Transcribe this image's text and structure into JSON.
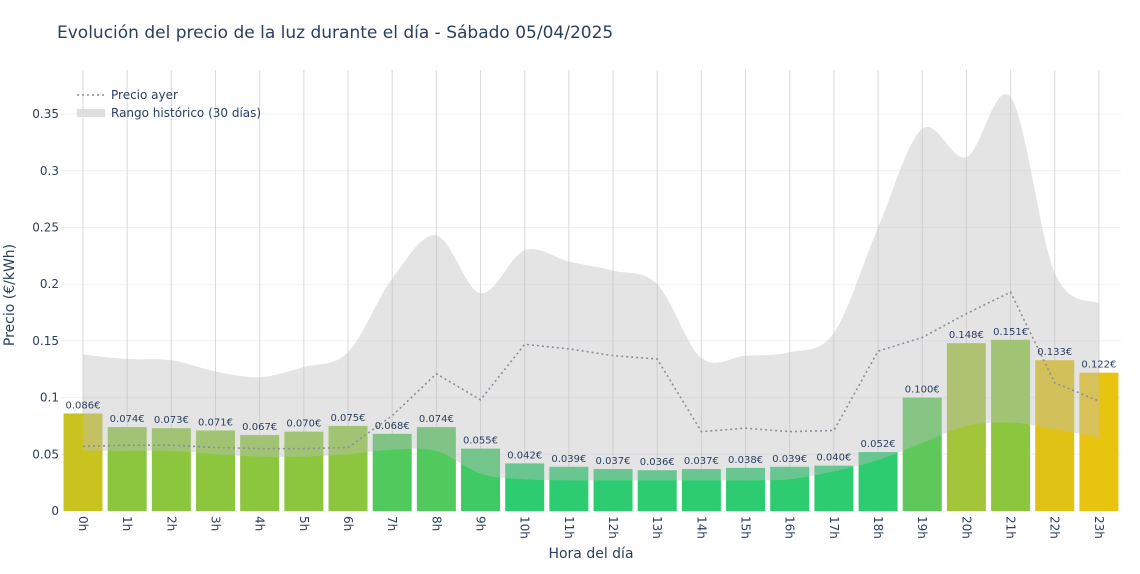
{
  "chart_data": {
    "type": "bar",
    "title": "Evolución del precio de la luz durante el día - Sábado 05/04/2025",
    "xlabel": "Hora del día",
    "ylabel": "Precio (€/kWh)",
    "ylim": [
      0,
      0.38
    ],
    "yticks": [
      0,
      0.05,
      0.1,
      0.15,
      0.2,
      0.25,
      0.3,
      0.35
    ],
    "ytick_labels": [
      "0",
      "0.05",
      "0.1",
      "0.15",
      "0.2",
      "0.25",
      "0.3",
      "0.35"
    ],
    "grid": true,
    "legend_position": "top-left",
    "categories": [
      "0h",
      "1h",
      "2h",
      "3h",
      "4h",
      "5h",
      "6h",
      "7h",
      "8h",
      "9h",
      "10h",
      "11h",
      "12h",
      "13h",
      "14h",
      "15h",
      "16h",
      "17h",
      "18h",
      "19h",
      "20h",
      "21h",
      "22h",
      "23h"
    ],
    "values": [
      0.086,
      0.074,
      0.073,
      0.071,
      0.067,
      0.07,
      0.075,
      0.068,
      0.074,
      0.055,
      0.042,
      0.039,
      0.037,
      0.036,
      0.037,
      0.038,
      0.039,
      0.04,
      0.052,
      0.1,
      0.148,
      0.151,
      0.133,
      0.122
    ],
    "data_labels": [
      "0.086€",
      "0.074€",
      "0.073€",
      "0.071€",
      "0.067€",
      "0.070€",
      "0.075€",
      "0.068€",
      "0.074€",
      "0.055€",
      "0.042€",
      "0.039€",
      "0.037€",
      "0.036€",
      "0.037€",
      "0.038€",
      "0.039€",
      "0.040€",
      "0.052€",
      "0.100€",
      "0.148€",
      "0.151€",
      "0.133€",
      "0.122€"
    ],
    "bar_colors": [
      "#c9c31f",
      "#8cc63f",
      "#8cc63f",
      "#8cc63f",
      "#8cc63f",
      "#8cc63f",
      "#8cc63f",
      "#52c95c",
      "#52c95c",
      "#3fca66",
      "#2ecc71",
      "#2ecc71",
      "#2ecc71",
      "#2ecc71",
      "#2ecc71",
      "#2ecc71",
      "#2ecc71",
      "#2ecc71",
      "#2ecc71",
      "#5ec85a",
      "#a3c53a",
      "#8cc63f",
      "#e0c214",
      "#e8c30f"
    ],
    "series": [
      {
        "name": "Precio ayer",
        "style": "dotted",
        "color": "#8a8f99",
        "values": [
          0.057,
          0.058,
          0.058,
          0.056,
          0.055,
          0.055,
          0.056,
          0.084,
          0.121,
          0.098,
          0.147,
          0.143,
          0.137,
          0.134,
          0.07,
          0.073,
          0.07,
          0.071,
          0.141,
          0.153,
          0.174,
          0.193,
          0.113,
          0.097
        ]
      },
      {
        "name": "Rango histórico (30 días)",
        "style": "band",
        "color": "#c8c8c8",
        "upper": [
          0.138,
          0.134,
          0.133,
          0.123,
          0.118,
          0.127,
          0.14,
          0.205,
          0.243,
          0.192,
          0.23,
          0.22,
          0.212,
          0.2,
          0.135,
          0.137,
          0.14,
          0.157,
          0.25,
          0.337,
          0.312,
          0.365,
          0.21,
          0.183
        ],
        "lower": [
          0.053,
          0.053,
          0.053,
          0.05,
          0.048,
          0.048,
          0.05,
          0.054,
          0.053,
          0.033,
          0.028,
          0.027,
          0.027,
          0.027,
          0.027,
          0.027,
          0.028,
          0.035,
          0.045,
          0.06,
          0.075,
          0.078,
          0.072,
          0.065
        ]
      }
    ]
  }
}
